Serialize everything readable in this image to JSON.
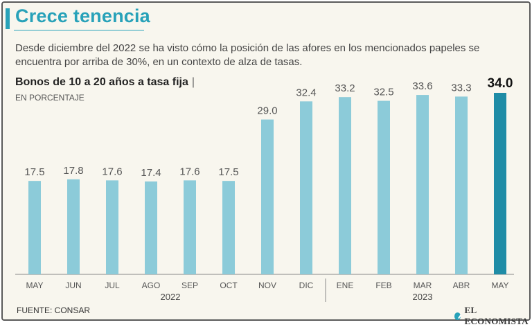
{
  "header": {
    "title": "Crece tenencia",
    "subtitle": "Desde diciembre del 2022 se ha visto cómo la posición de las afores en los mencionados papeles se encuentra por arriba de 30%, en un contexto de alza de tasas."
  },
  "chart_data": {
    "type": "bar",
    "title": "Bonos de 10 a 20 años a tasa fija",
    "title_separator": "|",
    "unit_label": "EN PORCENTAJE",
    "categories": [
      "MAY",
      "JUN",
      "JUL",
      "AGO",
      "SEP",
      "OCT",
      "NOV",
      "DIC",
      "ENE",
      "FEB",
      "MAR",
      "ABR",
      "MAY"
    ],
    "values": [
      17.5,
      17.8,
      17.6,
      17.4,
      17.6,
      17.5,
      29.0,
      32.4,
      33.2,
      32.5,
      33.6,
      33.3,
      34.0
    ],
    "value_labels": [
      "17.5",
      "17.8",
      "17.6",
      "17.4",
      "17.6",
      "17.5",
      "29.0",
      "32.4",
      "33.2",
      "32.5",
      "33.6",
      "33.3",
      "34.0"
    ],
    "highlight_index": 12,
    "ylim": [
      0,
      34.0
    ],
    "year_groups": [
      {
        "label": "2022",
        "start": 0,
        "end": 7
      },
      {
        "label": "2023",
        "start": 8,
        "end": 12
      }
    ],
    "colors": {
      "bar": "#8ccbd9",
      "highlight_bar": "#1f8ca6",
      "axis": "#888888",
      "label": "#555555"
    }
  },
  "footer": {
    "source": "FUENTE: CONSAR",
    "brand": "EL ECONOMISTA",
    "brand_icon": "check-circle-icon"
  }
}
